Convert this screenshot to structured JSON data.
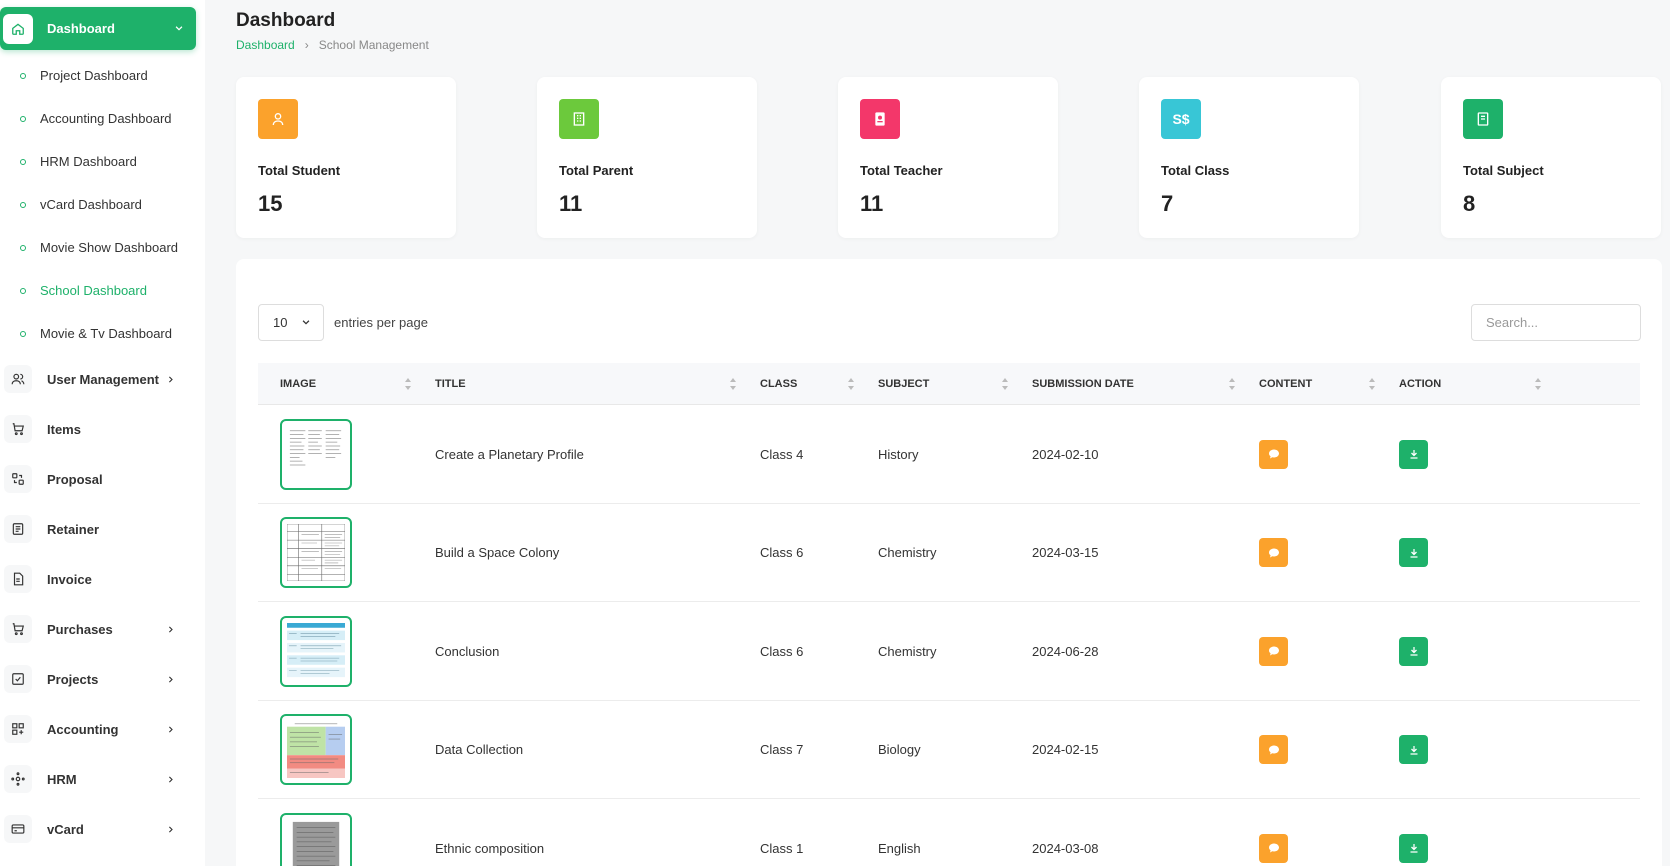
{
  "sidebar": {
    "dashboard": {
      "label": "Dashboard"
    },
    "sub_items": [
      {
        "label": "Project Dashboard"
      },
      {
        "label": "Accounting Dashboard"
      },
      {
        "label": "HRM Dashboard"
      },
      {
        "label": "vCard Dashboard"
      },
      {
        "label": "Movie Show Dashboard"
      },
      {
        "label": "School Dashboard",
        "active": true
      },
      {
        "label": "Movie & Tv Dashboard"
      }
    ],
    "main_items": [
      {
        "label": "User Management",
        "icon": "users-icon",
        "chevron": true
      },
      {
        "label": "Items",
        "icon": "cart-icon",
        "chevron": false
      },
      {
        "label": "Proposal",
        "icon": "proposal-icon",
        "chevron": false
      },
      {
        "label": "Retainer",
        "icon": "retainer-icon",
        "chevron": false
      },
      {
        "label": "Invoice",
        "icon": "invoice-icon",
        "chevron": false
      },
      {
        "label": "Purchases",
        "icon": "cart-icon",
        "chevron": true
      },
      {
        "label": "Projects",
        "icon": "check-square-icon",
        "chevron": true
      },
      {
        "label": "Accounting",
        "icon": "grid-icon",
        "chevron": true
      },
      {
        "label": "HRM",
        "icon": "hrm-icon",
        "chevron": true
      },
      {
        "label": "vCard",
        "icon": "card-icon",
        "chevron": true
      }
    ]
  },
  "header": {
    "title": "Dashboard",
    "breadcrumb": {
      "home": "Dashboard",
      "current": "School Management"
    }
  },
  "stats": [
    {
      "label": "Total Student",
      "value": "15",
      "color": "#fba22c",
      "icon": "user-icon"
    },
    {
      "label": "Total Parent",
      "value": "11",
      "color": "#6cc93c",
      "icon": "building-icon"
    },
    {
      "label": "Total Teacher",
      "value": "11",
      "color": "#f3376a",
      "icon": "id-badge-icon"
    },
    {
      "label": "Total Class",
      "value": "7",
      "color": "#38c6d6",
      "icon": "currency-icon",
      "icon_text": "S$"
    },
    {
      "label": "Total Subject",
      "value": "8",
      "color": "#1eb16a",
      "icon": "book-icon"
    }
  ],
  "table": {
    "per_page": "10",
    "per_page_label": "entries per page",
    "search_placeholder": "Search...",
    "columns": [
      "IMAGE",
      "TITLE",
      "CLASS",
      "SUBJECT",
      "SUBMISSION DATE",
      "CONTENT",
      "ACTION"
    ],
    "rows": [
      {
        "title": "Create a Planetary Profile",
        "class": "Class 4",
        "subject": "History",
        "date": "2024-02-10"
      },
      {
        "title": "Build a Space Colony",
        "class": "Class 6",
        "subject": "Chemistry",
        "date": "2024-03-15"
      },
      {
        "title": "Conclusion",
        "class": "Class 6",
        "subject": "Chemistry",
        "date": "2024-06-28"
      },
      {
        "title": "Data Collection",
        "class": "Class 7",
        "subject": "Biology",
        "date": "2024-02-15"
      },
      {
        "title": "Ethnic composition",
        "class": "Class 1",
        "subject": "English",
        "date": "2024-03-08"
      }
    ]
  }
}
